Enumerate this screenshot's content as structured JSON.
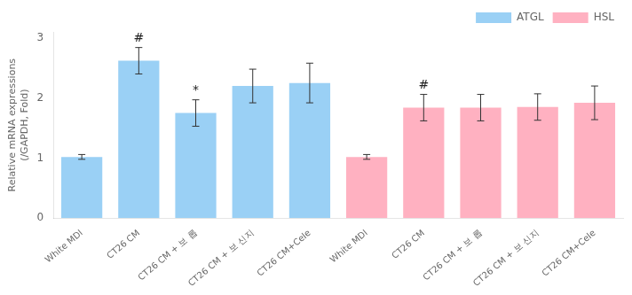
{
  "chart_data": {
    "type": "bar",
    "categories": [
      "White MDI",
      "CT26 CM",
      "CT26 CM + 보 롭",
      "CT26 CM + 보 신지",
      "CT26 CM+Cele",
      "White MDI",
      "CT26 CM",
      "CT26 CM + 보 롭",
      "CT26 CM + 보 신지",
      "CT26 CM+Cele"
    ],
    "series": [
      {
        "name": "ATGL",
        "values": [
          1.02,
          2.62,
          1.75,
          2.2,
          2.25,
          null,
          null,
          null,
          null,
          null
        ],
        "errors": [
          0.04,
          0.22,
          0.22,
          0.28,
          0.33,
          null,
          null,
          null,
          null,
          null
        ]
      },
      {
        "name": "HSL",
        "values": [
          null,
          null,
          null,
          null,
          null,
          1.02,
          1.84,
          1.84,
          1.85,
          1.92
        ],
        "errors": [
          null,
          null,
          null,
          null,
          null,
          0.04,
          0.22,
          0.22,
          0.22,
          0.28
        ]
      }
    ],
    "ylabel": "Relative mRNA expressions\n(/GAPDH, Fold)",
    "ylim": [
      0,
      3.1
    ],
    "yticks": [
      0,
      1,
      2,
      3
    ],
    "grid": false,
    "legend": "upper right",
    "annotations": [
      {
        "text": "#",
        "index": 1
      },
      {
        "text": "*",
        "index": 2
      },
      {
        "text": "#",
        "index": 6
      }
    ]
  }
}
